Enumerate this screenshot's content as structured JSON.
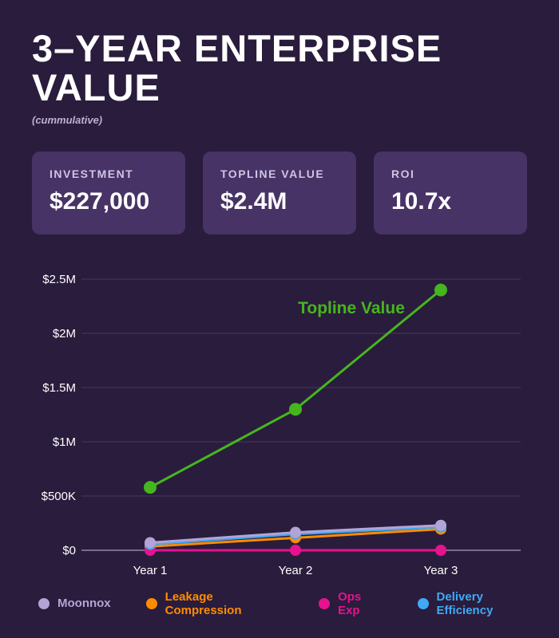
{
  "header": {
    "title": "3–YEAR ENTERPRISE VALUE",
    "subtitle": "(cummulative)"
  },
  "stats": [
    {
      "label": "INVESTMENT",
      "value": "$227,000"
    },
    {
      "label": "TOPLINE VALUE",
      "value": "$2.4M"
    },
    {
      "label": "ROI",
      "value": "10.7x"
    }
  ],
  "chart_data": {
    "type": "line",
    "categories": [
      "Year 1",
      "Year 2",
      "Year 3"
    ],
    "ylim": [
      0,
      2500000
    ],
    "yticks": [
      {
        "value": 0,
        "label": "$0"
      },
      {
        "value": 500000,
        "label": "$500K"
      },
      {
        "value": 1000000,
        "label": "$1M"
      },
      {
        "value": 1500000,
        "label": "$1.5M"
      },
      {
        "value": 2000000,
        "label": "$2M"
      },
      {
        "value": 2500000,
        "label": "$2.5M"
      }
    ],
    "series": [
      {
        "name": "Topline Value",
        "values": [
          580000,
          1300000,
          2400000
        ],
        "color": "#45b61e",
        "marker_radius": 8
      },
      {
        "name": "Leakage Compression",
        "values": [
          35000,
          115000,
          195000
        ],
        "color": "#ff8c00",
        "marker_radius": 7
      },
      {
        "name": "Ops Exp",
        "values": [
          0,
          0,
          0
        ],
        "color": "#e6128f",
        "marker_radius": 7
      },
      {
        "name": "Delivery Efficiency",
        "values": [
          55000,
          150000,
          215000
        ],
        "color": "#3fa9f5",
        "marker_radius": 7
      },
      {
        "name": "Moonnox",
        "values": [
          70000,
          165000,
          230000
        ],
        "color": "#b3a4d6",
        "marker_radius": 7
      }
    ],
    "annotation": {
      "text": "Topline Value",
      "color": "#45b61e",
      "x": 400,
      "y": 61
    },
    "legend": [
      {
        "label": "Moonnox",
        "color": "#b3a4d6"
      },
      {
        "label": "Leakage Compression",
        "color": "#ff8c00"
      },
      {
        "label": "Ops Exp",
        "color": "#e6128f"
      },
      {
        "label": "Delivery Efficiency",
        "color": "#3fa9f5"
      }
    ],
    "grid": true,
    "legend_position": "bottom",
    "title": "3–YEAR ENTERPRISE VALUE (cummulative)"
  },
  "colors": {
    "background": "#2a1c3c",
    "card": "#473365",
    "grid": "#463a5c",
    "axis": "#928ca0",
    "tick_text": "#ffffff"
  }
}
